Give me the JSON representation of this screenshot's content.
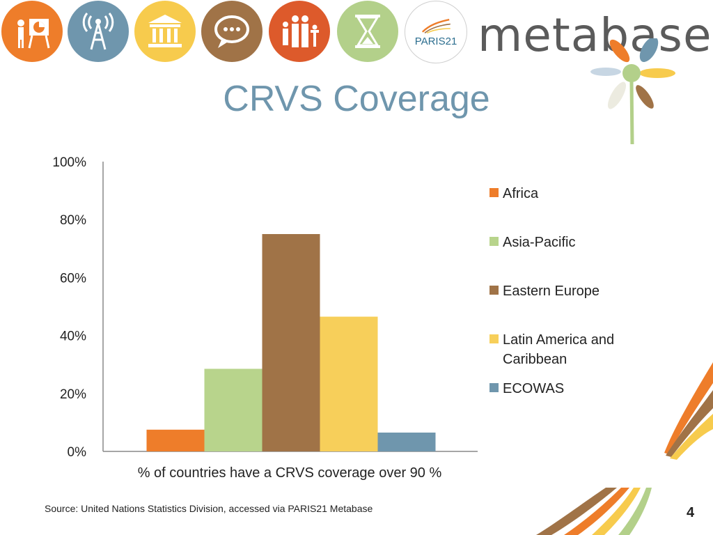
{
  "header": {
    "icons": [
      {
        "name": "presentation-icon",
        "color": "#ee7d2a"
      },
      {
        "name": "radio-tower-icon",
        "color": "#6f96ad"
      },
      {
        "name": "government-building-icon",
        "color": "#f7cb4d"
      },
      {
        "name": "speech-bubble-icon",
        "color": "#a07347"
      },
      {
        "name": "family-icon",
        "color": "#dd5a2b"
      },
      {
        "name": "hourglass-icon",
        "color": "#b3d08a"
      }
    ],
    "paris21_label": "PARIS21",
    "brand": "metabase"
  },
  "title": "CRVS Coverage",
  "chart_data": {
    "type": "bar",
    "categories": [
      "% of countries have a CRVS coverage over 90 %"
    ],
    "xlabel": "% of countries have a CRVS coverage over 90 %",
    "ylabel": "",
    "ylim": [
      0,
      100
    ],
    "yticks": [
      "0%",
      "20%",
      "40%",
      "60%",
      "80%",
      "100%"
    ],
    "grid": false,
    "legend_position": "right",
    "series": [
      {
        "name": "Africa",
        "values": [
          7.5
        ],
        "color": "#ee7d2a"
      },
      {
        "name": "Asia-Pacific",
        "values": [
          28.5
        ],
        "color": "#b8d48c"
      },
      {
        "name": "Eastern Europe",
        "values": [
          75
        ],
        "color": "#a07347"
      },
      {
        "name": "Latin America and Caribbean",
        "values": [
          46.5
        ],
        "color": "#f7cf5a"
      },
      {
        "name": "ECOWAS",
        "values": [
          6.5
        ],
        "color": "#6f96ad"
      }
    ]
  },
  "footer": {
    "source": "Source: United Nations Statistics Division, accessed via PARIS21 Metabase",
    "page_number": "4"
  }
}
